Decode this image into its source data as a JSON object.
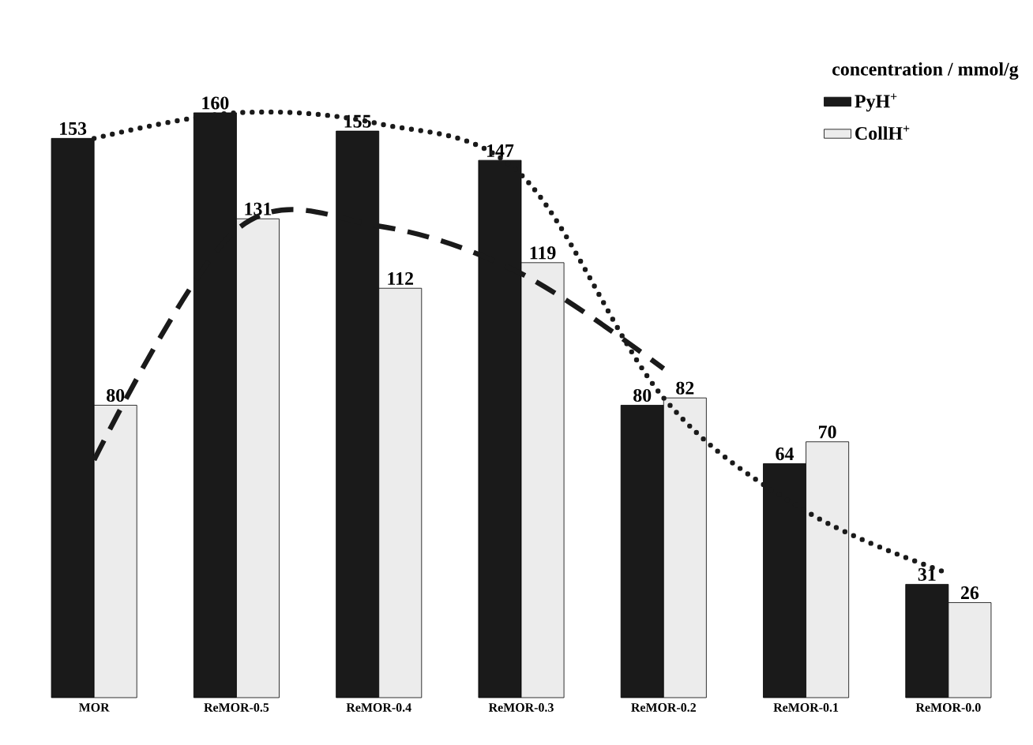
{
  "chart_data": {
    "type": "bar",
    "legend_title": "concentration / mmol/g",
    "categories": [
      "MOR",
      "ReMOR-0.5",
      "ReMOR-0.4",
      "ReMOR-0.3",
      "ReMOR-0.2",
      "ReMOR-0.1",
      "ReMOR-0.0"
    ],
    "series": [
      {
        "name": "PyH$^{+}$",
        "color": "#1a1a1a",
        "values": [
          153,
          160,
          155,
          147,
          80,
          64,
          31
        ],
        "value_labels": [
          "153",
          "160",
          "155",
          "147",
          "80",
          "64",
          "31"
        ]
      },
      {
        "name": "CollH$^{+}$",
        "color": "#ececec",
        "values": [
          80,
          131,
          112,
          119,
          82,
          70,
          26
        ],
        "value_labels": [
          "80",
          "131",
          "112",
          "119",
          "82",
          "70",
          "26"
        ]
      },
      {
        "type": "line",
        "line_style": "dotted",
        "color": "#1a1a1a",
        "values": [
          153,
          160,
          157,
          143,
          82,
          51,
          34
        ]
      },
      {
        "type": "line",
        "line_style": "dashed",
        "color": "#1a1a1a",
        "values": [
          65,
          128,
          129,
          116,
          90,
          null,
          null
        ]
      }
    ],
    "legend": "top right",
    "tick_labels": "x"
  }
}
